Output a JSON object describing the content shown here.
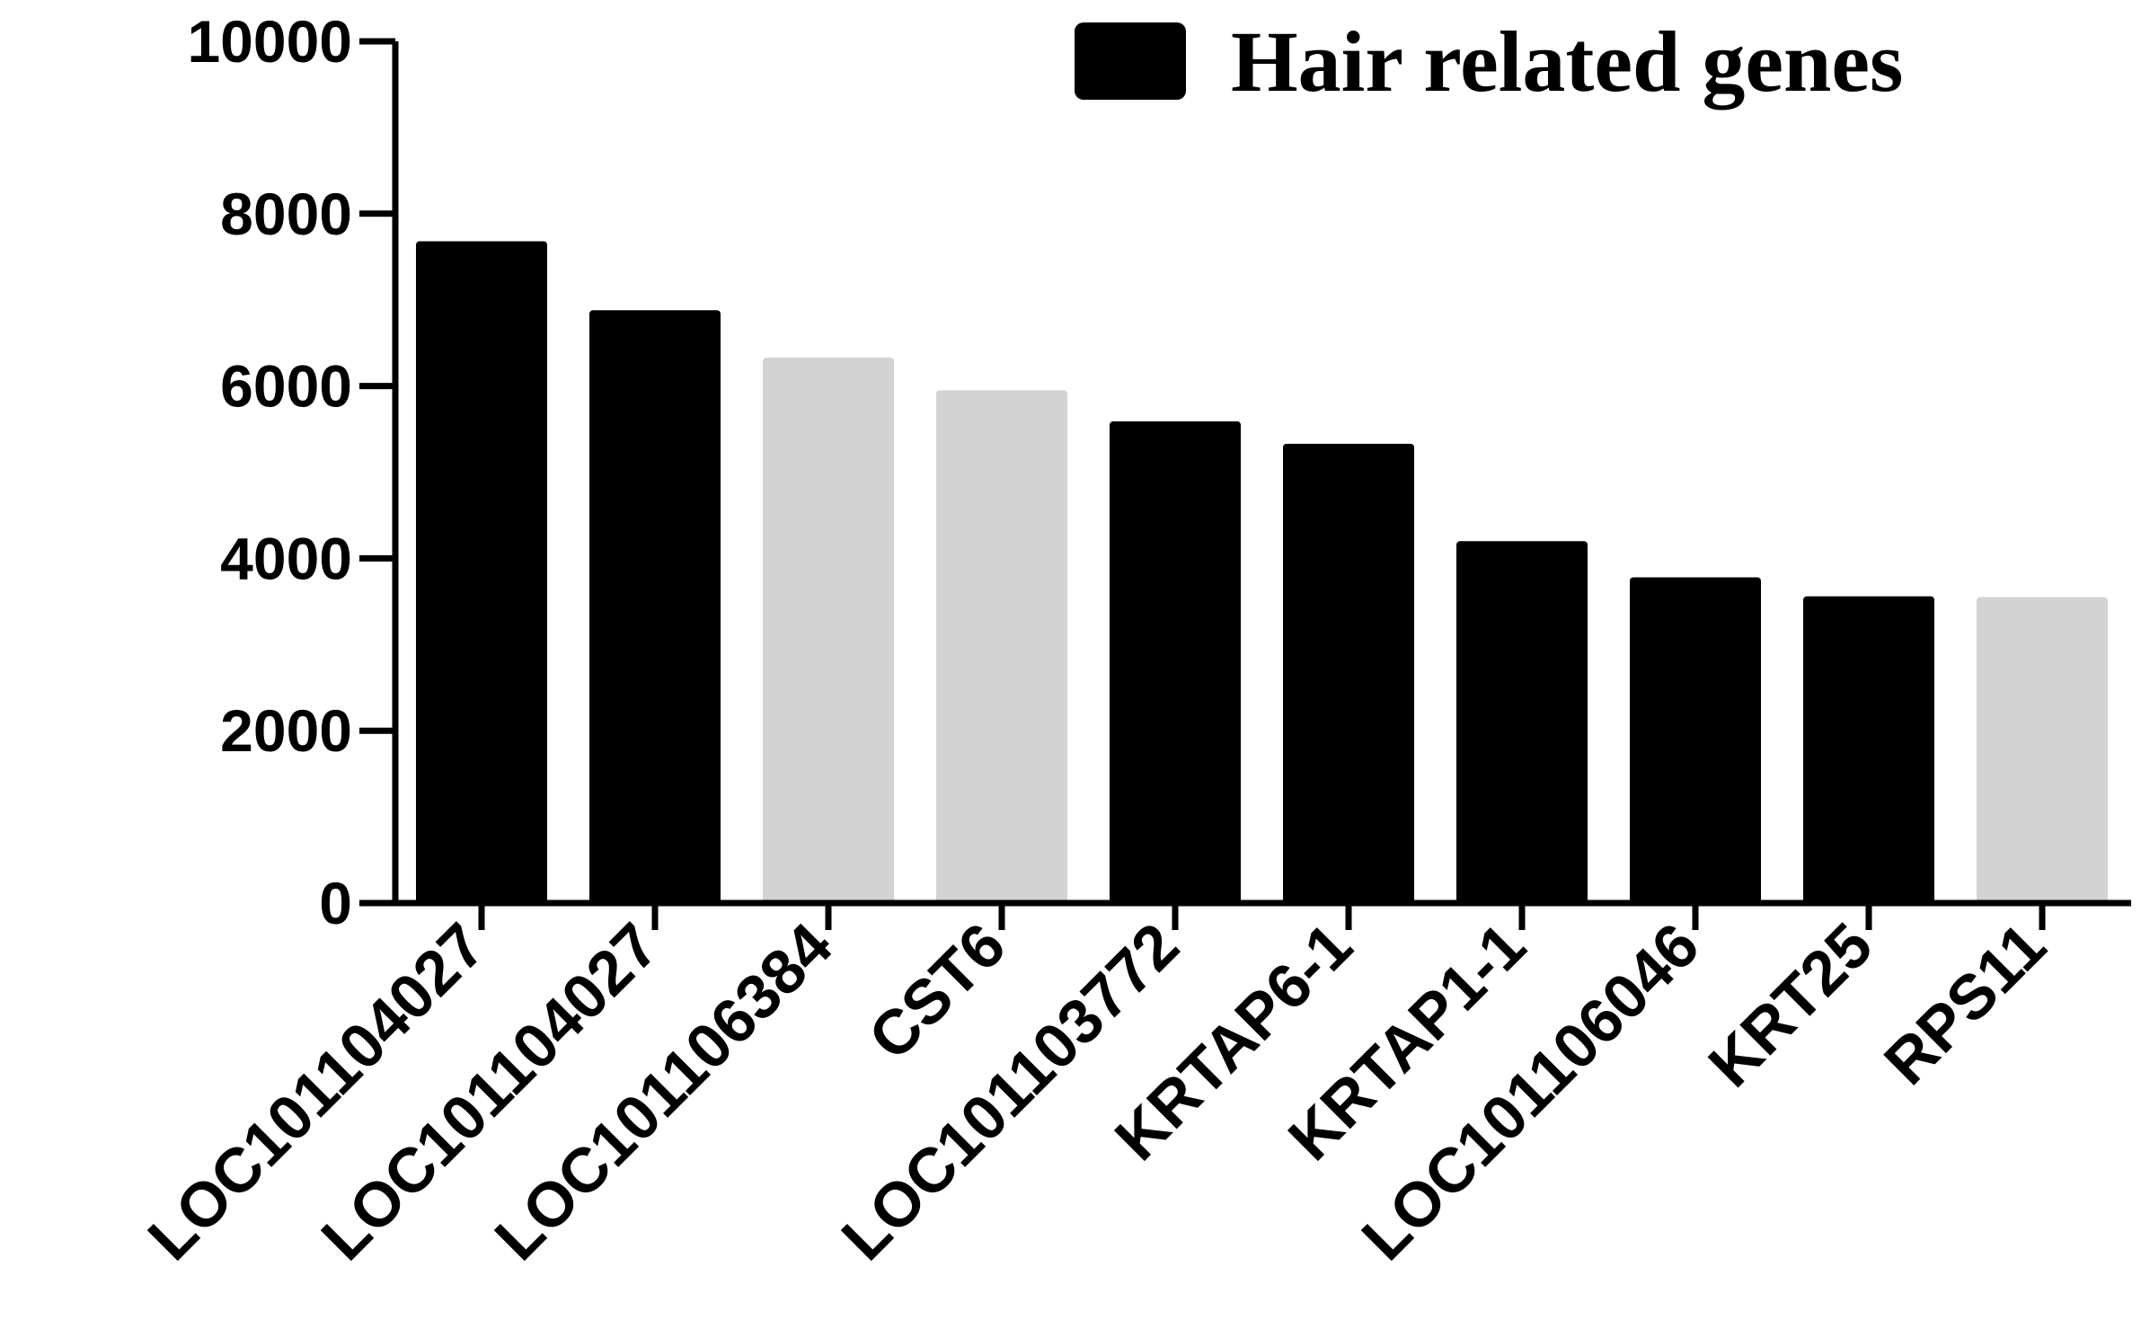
{
  "chart_data": {
    "type": "bar",
    "categories": [
      "LOC101104027",
      "LOC101104027",
      "LOC101106384",
      "CST6",
      "LOC101103772",
      "KRTAP6-1",
      "KRTAP1-1",
      "LOC101106046",
      "KRT25",
      "RPS11"
    ],
    "values": [
      7680,
      6880,
      6330,
      5950,
      5590,
      5330,
      4200,
      3780,
      3560,
      3550
    ],
    "hair_related": [
      true,
      true,
      false,
      false,
      true,
      true,
      true,
      true,
      true,
      false
    ],
    "xlabel": "",
    "ylabel": "",
    "ylim": [
      0,
      10000
    ],
    "yticks": [
      0,
      2000,
      4000,
      6000,
      8000,
      10000
    ],
    "legend": {
      "label": "Hair related genes",
      "placement": "top-right",
      "color": "#000000"
    },
    "colors": {
      "hair_related": "#000000",
      "other": "#d3d3d3",
      "axis": "#000000"
    },
    "grid": false
  }
}
